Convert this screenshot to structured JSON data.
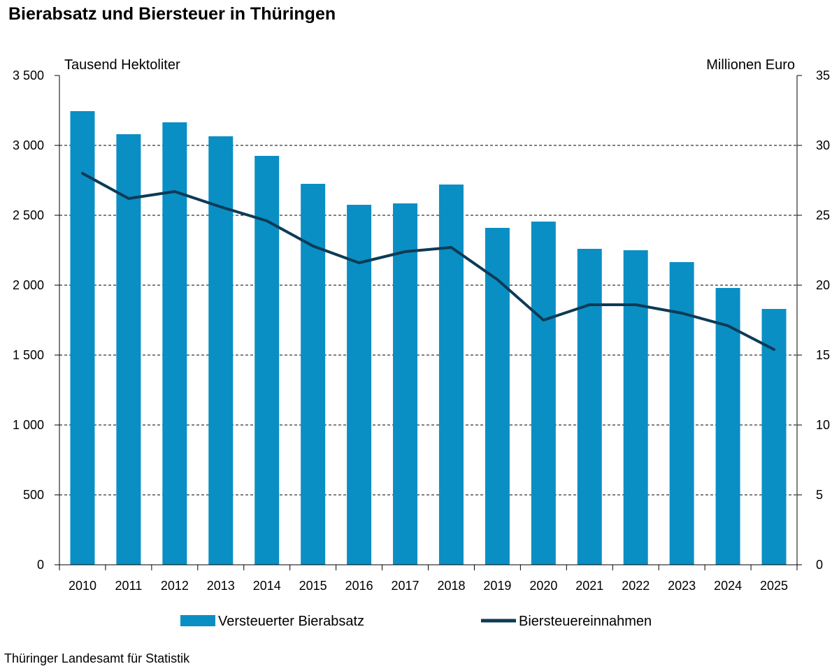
{
  "title": "Bierabsatz und Biersteuer in Thüringen",
  "source": "Thüringer Landesamt für Statistik",
  "colors": {
    "bar": "#0a8fc4",
    "line": "#0d3b56",
    "grid": "#000000"
  },
  "chart_data": {
    "type": "bar",
    "title": "Bierabsatz und Biersteuer in Thüringen",
    "categories": [
      "2010",
      "2011",
      "2012",
      "2013",
      "2014",
      "2015",
      "2016",
      "2017",
      "2018",
      "2019",
      "2020",
      "2021",
      "2022",
      "2023",
      "2024",
      "2025"
    ],
    "y_left": {
      "label": "Tausend Hektoliter",
      "ylim": [
        0,
        3500
      ],
      "ticks": [
        0,
        500,
        1000,
        1500,
        2000,
        2500,
        3000,
        3500
      ],
      "tick_labels": [
        "0",
        "500",
        "1 000",
        "1 500",
        "2 000",
        "2 500",
        "3 000",
        "3 500"
      ]
    },
    "y_right": {
      "label": "Millionen Euro",
      "ylim": [
        0,
        35
      ],
      "ticks": [
        0,
        5,
        10,
        15,
        20,
        25,
        30,
        35
      ],
      "tick_labels": [
        "0",
        "5",
        "10",
        "15",
        "20",
        "25",
        "30",
        "35"
      ]
    },
    "series": [
      {
        "name": "Versteuerter Bierabsatz",
        "type": "bar",
        "axis": "left",
        "values": [
          3245,
          3080,
          3165,
          3065,
          2925,
          2725,
          2575,
          2585,
          2720,
          2410,
          2455,
          2260,
          2250,
          2165,
          1980,
          1830
        ]
      },
      {
        "name": "Biersteuereinnahmen",
        "type": "line",
        "axis": "right",
        "values": [
          28.0,
          26.2,
          26.7,
          25.6,
          24.6,
          22.8,
          21.6,
          22.4,
          22.7,
          20.4,
          17.5,
          18.6,
          18.6,
          18.0,
          17.1,
          15.4
        ]
      }
    ],
    "grid": "horizontal dashed",
    "legend": "bottom"
  }
}
